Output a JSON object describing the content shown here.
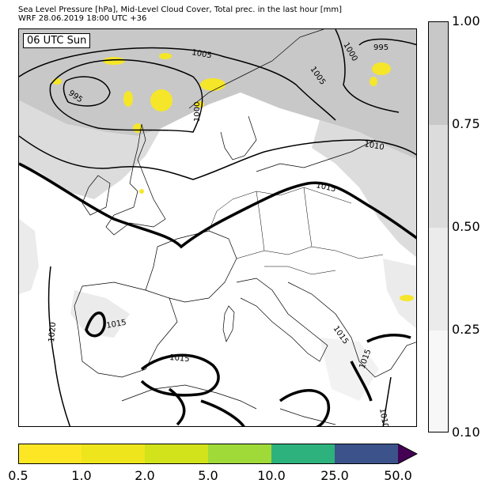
{
  "header": {
    "title_line1": "Sea Level Pressure [hPa], Mid-Level Cloud Cover, Total prec. in the last hour [mm]",
    "title_line2": "WRF 28.06.2019 18:00 UTC +36"
  },
  "map": {
    "time_label": "06 UTC Sun",
    "isobars": [
      {
        "value": 995,
        "label": "995"
      },
      {
        "value": 995,
        "label": "995"
      },
      {
        "value": 1000,
        "label": "1000"
      },
      {
        "value": 1000,
        "label": "1000"
      },
      {
        "value": 1005,
        "label": "1005"
      },
      {
        "value": 1005,
        "label": "1005"
      },
      {
        "value": 1010,
        "label": "1010"
      },
      {
        "value": 1015,
        "label": "1015"
      },
      {
        "value": 1015,
        "label": "1015"
      },
      {
        "value": 1015,
        "label": "1015"
      },
      {
        "value": 1015,
        "label": "1015"
      },
      {
        "value": 1015,
        "label": "1015"
      },
      {
        "value": 1020,
        "label": "1020"
      },
      {
        "value": 1010,
        "label": "1010"
      }
    ]
  },
  "cloud_cover_legend": {
    "ticks": [
      "1.00",
      "0.75",
      "0.50",
      "0.25",
      "0.10"
    ],
    "colors": [
      "#c8c8c8",
      "#dcdcdc",
      "#ebebeb",
      "#f7f7f7"
    ]
  },
  "precip_legend": {
    "ticks": [
      "0.5",
      "1.0",
      "2.0",
      "5.0",
      "10.0",
      "25.0",
      "50.0"
    ],
    "colors": [
      "#fde725",
      "#eee51c",
      "#d2e21b",
      "#a0da39",
      "#2db27d",
      "#3b528b",
      "#440154"
    ]
  }
}
